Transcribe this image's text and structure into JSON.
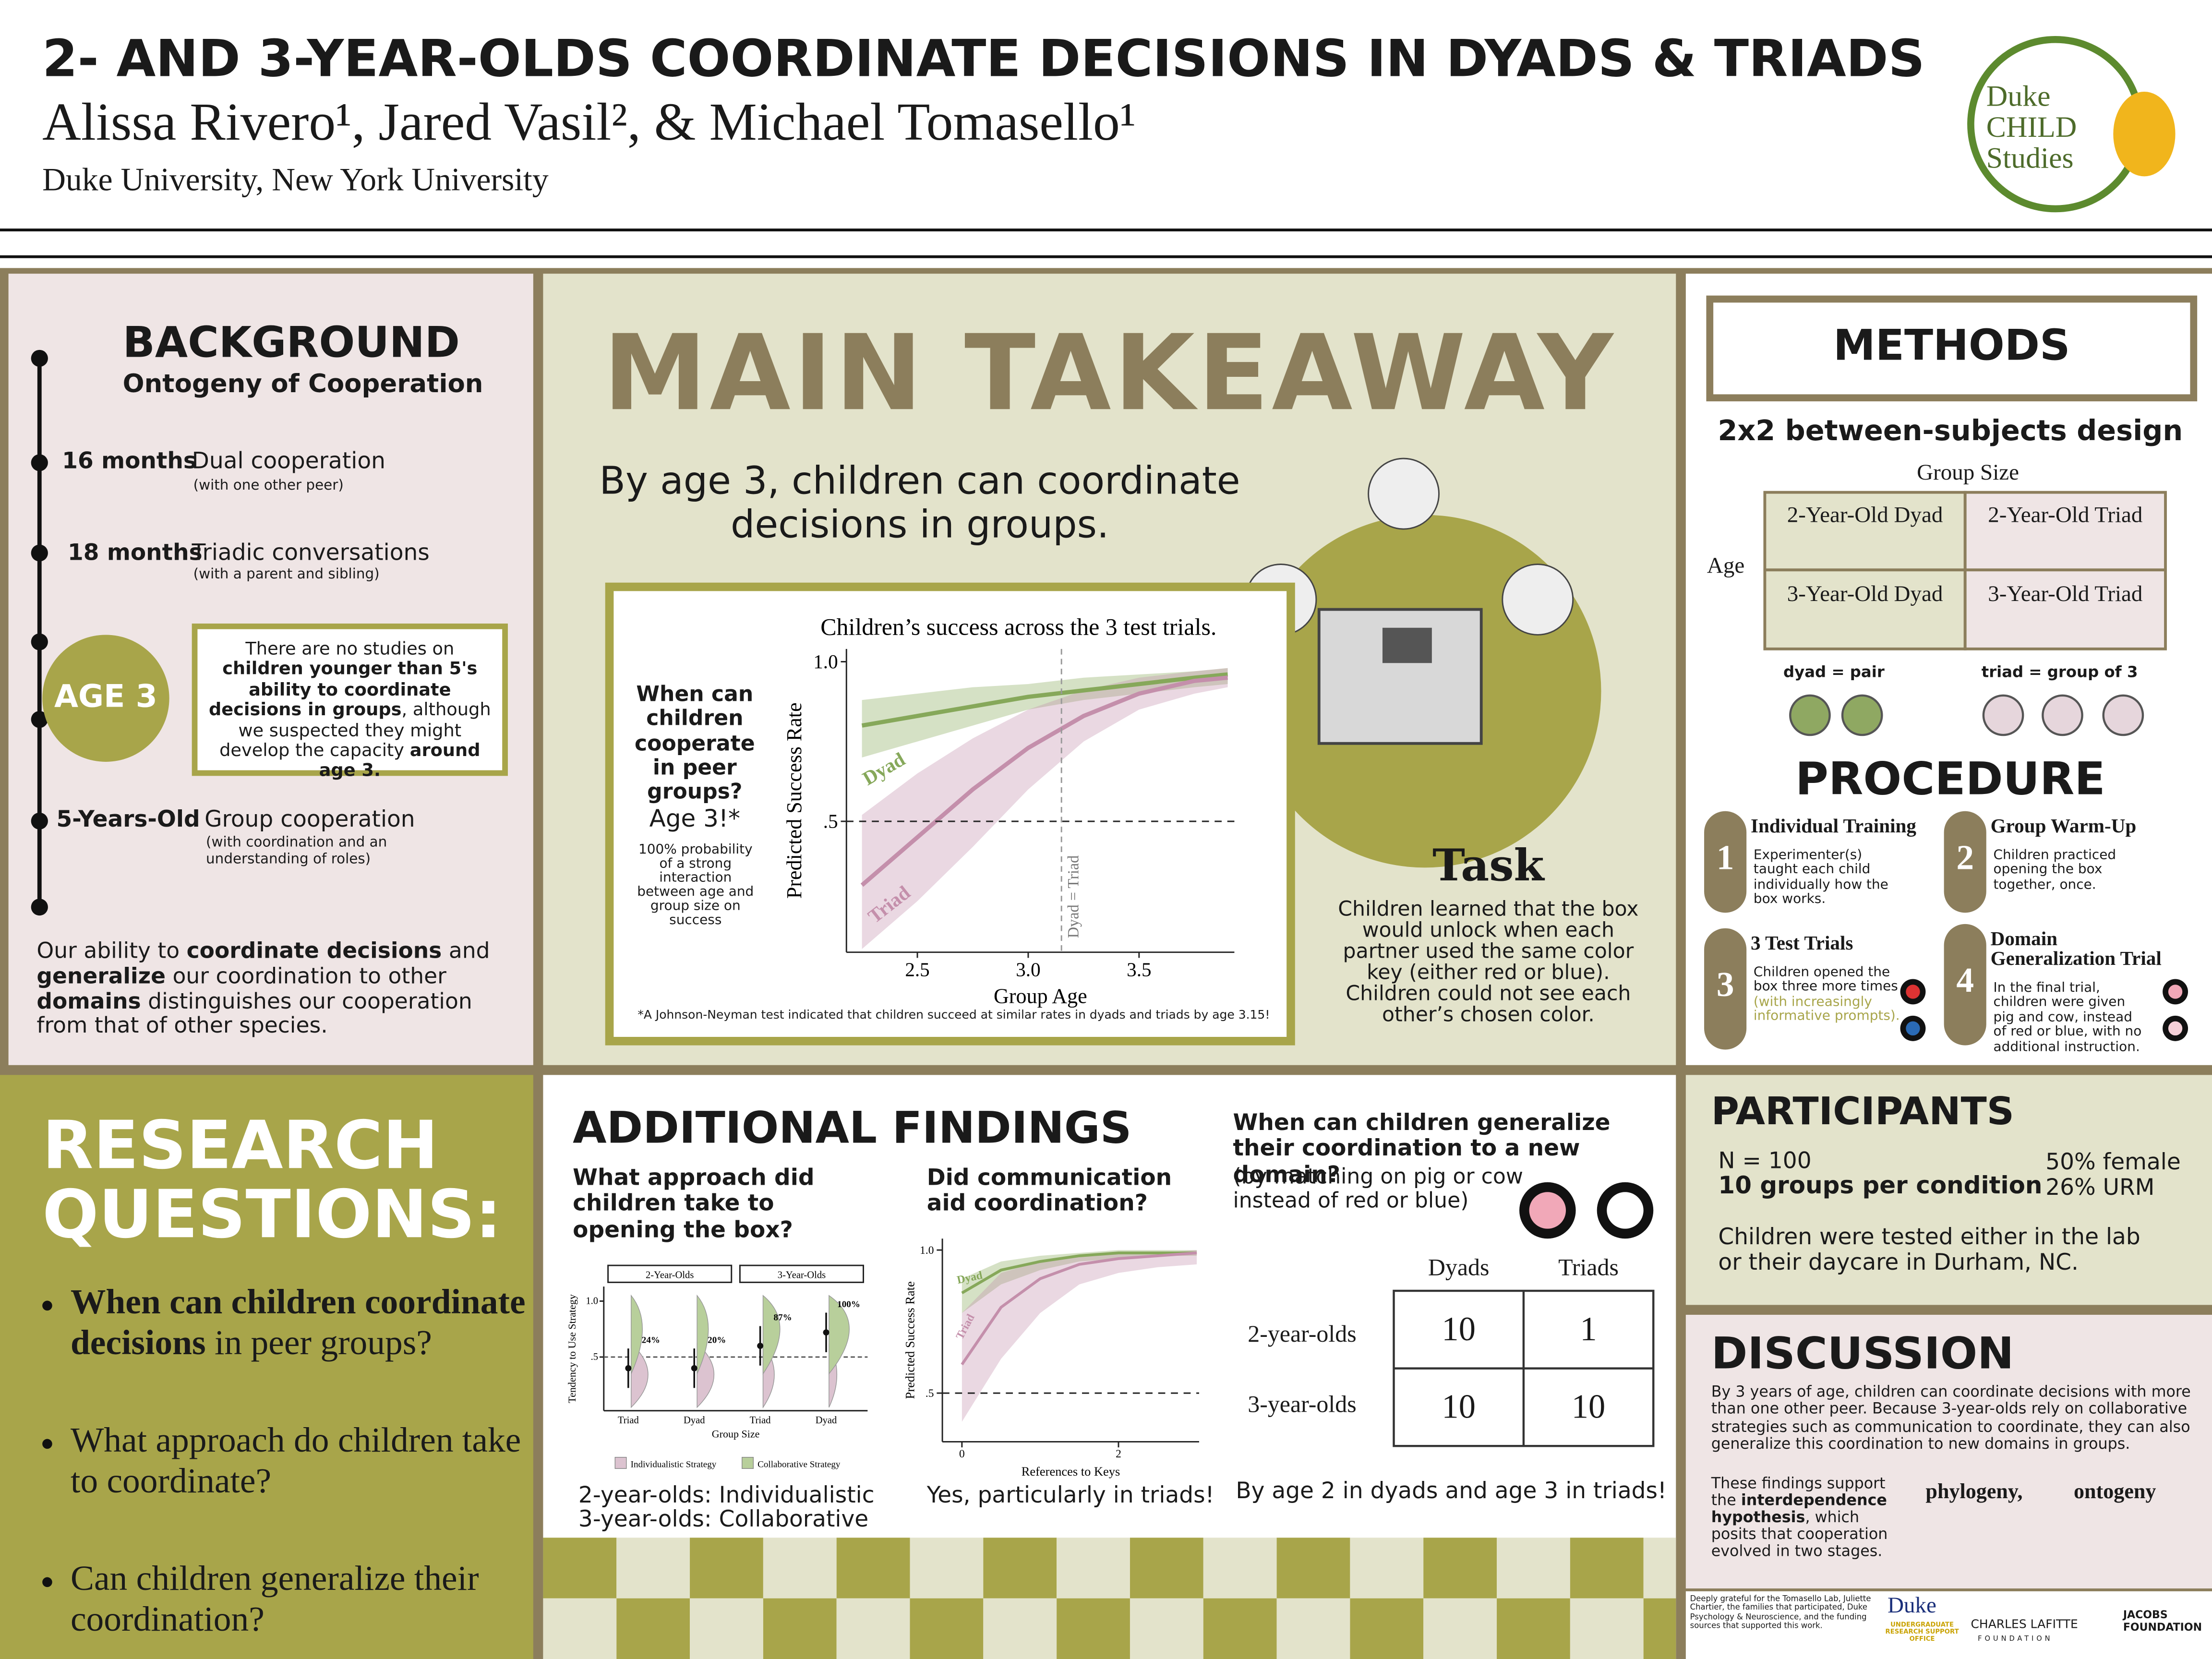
{
  "header": {
    "title": "2- AND 3-YEAR-OLDS COORDINATE DECISIONS IN DYADS & TRIADS",
    "authors": "Alissa Rivero¹, Jared Vasil², & Michael Tomasello¹",
    "affiliation": "Duke University, New York University",
    "logo": [
      "Duke",
      "CHILD",
      "Studies"
    ]
  },
  "background": {
    "title": "BACKGROUND",
    "subtitle": "Ontogeny of Cooperation",
    "timeline": [
      {
        "age": "16 months",
        "label": "Dual cooperation",
        "note": "(with one other peer)"
      },
      {
        "age": "18 months",
        "label": "Triadic conversations",
        "note": "(with a parent and sibling)"
      },
      {
        "age": "5-Years-Old",
        "label": "Group cooperation",
        "note": "(with coordination and an understanding of roles)"
      }
    ],
    "age3": "AGE 3",
    "callout": [
      {
        "text": "There are no studies on "
      },
      {
        "text": "children younger than 5's ability to coordinate decisions in groups",
        "bold": true
      },
      {
        "text": ", although we suspected they might develop the capacity "
      },
      {
        "text": "around age 3.",
        "bold": true
      }
    ],
    "summary": [
      {
        "text": "Our ability to "
      },
      {
        "text": "coordinate decisions",
        "bold": true
      },
      {
        "text": " and "
      },
      {
        "text": "generalize",
        "bold": true
      },
      {
        "text": " our coordination to other "
      },
      {
        "text": "domains",
        "bold": true
      },
      {
        "text": " distinguishes our cooperation from that of other species."
      }
    ]
  },
  "main_takeaway": {
    "title": "MAIN TAKEAWAY",
    "statement": "By age 3, children can coordinate decisions in groups.",
    "question": "When can children cooperate in peer groups?",
    "answer": "Age 3!*",
    "answer_note": "100% probability of a strong interaction between age and group size on success",
    "footnote": "*A Johnson-Neyman test indicated that children succeed at similar rates in dyads and triads by age 3.15!",
    "chart": {
      "type": "line",
      "title": "Children’s success across the 3 test trials.",
      "x_label": "Group Age",
      "y_label": "Predicted Success Rate",
      "x": [
        2.25,
        2.5,
        2.75,
        3.0,
        3.25,
        3.5,
        3.75,
        3.9
      ],
      "series": [
        {
          "name": "Dyad",
          "color": "#86a85a",
          "values": [
            0.8,
            0.83,
            0.86,
            0.89,
            0.91,
            0.93,
            0.95,
            0.96
          ],
          "lower": [
            0.7,
            0.75,
            0.8,
            0.85,
            0.88,
            0.9,
            0.92,
            0.93
          ],
          "upper": [
            0.88,
            0.9,
            0.92,
            0.93,
            0.95,
            0.96,
            0.97,
            0.98
          ]
        },
        {
          "name": "Triad",
          "color": "#c48fab",
          "values": [
            0.3,
            0.45,
            0.6,
            0.73,
            0.83,
            0.9,
            0.94,
            0.95
          ],
          "lower": [
            0.1,
            0.25,
            0.42,
            0.6,
            0.75,
            0.85,
            0.9,
            0.92
          ],
          "upper": [
            0.52,
            0.65,
            0.76,
            0.85,
            0.91,
            0.95,
            0.97,
            0.98
          ]
        }
      ],
      "xlim": [
        2.18,
        3.93
      ],
      "xticks": [
        2.5,
        {
          "value": 3,
          "label": "3.0"
        },
        3.5
      ],
      "ylim": [
        0.09,
        1.04
      ],
      "yticks": [
        {
          "value": 0.5,
          "label": ".5"
        },
        {
          "value": 1,
          "label": "1.0"
        }
      ],
      "reference_y": 0.5,
      "reference_x": 3.15,
      "reference_x_label": "Dyad = Triad"
    },
    "task": {
      "title": "Task",
      "text": "Children learned that the box would unlock when each partner used the same color key (either red or blue). Children could not see each other’s chosen color."
    }
  },
  "methods": {
    "title": "METHODS",
    "design": "2x2 between-subjects design",
    "column_header": "Group Size",
    "row_header": "Age",
    "cells": [
      [
        "2-Year-Old Dyad",
        "2-Year-Old Triad"
      ],
      [
        "3-Year-Old Dyad",
        "3-Year-Old Triad"
      ]
    ],
    "dyad_def": "dyad = pair",
    "triad_def": "triad = group of 3"
  },
  "procedure": {
    "title": "PROCEDURE",
    "steps": [
      {
        "number": "1",
        "title": "Individual Training",
        "text": "Experimenter(s) taught each child individually how the box works."
      },
      {
        "number": "2",
        "title": "Group Warm-Up",
        "text": "Children practiced opening the box together, once."
      },
      {
        "number": "3",
        "title": "3 Test Trials",
        "text": "Children opened the box three more times",
        "note": "(with increasingly informative prompts)."
      },
      {
        "number": "4",
        "title": "Domain Generalization Trial",
        "text": "In the final trial, children were given pig and cow, instead of red or blue, with no additional instruction."
      }
    ]
  },
  "research_questions": {
    "title": "RESEARCH QUESTIONS:",
    "items": [
      [
        {
          "text": "When can children coordinate decisions",
          "bold": true
        },
        {
          "text": " in peer groups?"
        }
      ],
      [
        {
          "text": "What approach do children take to coordinate?"
        }
      ],
      [
        {
          "text": "Can children generalize their coordination?"
        }
      ]
    ]
  },
  "additional_findings": {
    "title": "ADDITIONAL FINDINGS",
    "approach": {
      "question": "What approach did children take to opening the box?",
      "answer": [
        "2-year-olds: Individualistic",
        "3-year-olds: Collaborative"
      ],
      "chart": {
        "type": "raincloud",
        "panels": [
          "2-Year-Olds",
          "3-Year-Olds"
        ],
        "categories": [
          "Triad",
          "Dyad",
          "Triad",
          "Dyad"
        ],
        "values": [
          0.4,
          0.4,
          0.6,
          0.72
        ],
        "probability_labels": [
          "24%",
          "20%",
          "87%",
          "100%"
        ],
        "x_label": "Group Size",
        "y_label": "Tendency to Use Strategy",
        "ylim": [
          0.02,
          1.13
        ],
        "yticks": [
          {
            "value": 0.5,
            "label": ".5"
          },
          {
            "value": 1,
            "label": "1.0"
          }
        ],
        "series": [
          {
            "name": "Individualistic Strategy",
            "color": "#dcc3d0"
          },
          {
            "name": "Collaborative Strategy",
            "color": "#b8cf9b"
          }
        ]
      }
    },
    "communication": {
      "question": "Did communication aid coordination?",
      "answer": "Yes, particularly in triads!",
      "chart": {
        "type": "line",
        "x_label": "References to Keys",
        "y_label": "Predicted Success Rate",
        "x": [
          0,
          0.5,
          1,
          1.5,
          2,
          2.5,
          3
        ],
        "series": [
          {
            "name": "Dyad",
            "color": "#86a85a",
            "values": [
              0.85,
              0.93,
              0.96,
              0.98,
              0.99,
              0.99,
              0.99
            ],
            "lower": [
              0.78,
              0.88,
              0.93,
              0.96,
              0.97,
              0.98,
              0.98
            ],
            "upper": [
              0.9,
              0.96,
              0.98,
              0.99,
              1.0,
              1.0,
              1.0
            ]
          },
          {
            "name": "Triad",
            "color": "#c48fab",
            "values": [
              0.6,
              0.8,
              0.9,
              0.95,
              0.97,
              0.98,
              0.99
            ],
            "lower": [
              0.4,
              0.62,
              0.78,
              0.88,
              0.92,
              0.94,
              0.95
            ],
            "upper": [
              0.78,
              0.92,
              0.96,
              0.98,
              0.99,
              0.99,
              1.0
            ]
          }
        ],
        "xlim": [
          -0.25,
          3.03
        ],
        "xticks": [
          0,
          2
        ],
        "ylim": [
          0.33,
          1.04
        ],
        "yticks": [
          {
            "value": 0.5,
            "label": ".5"
          },
          {
            "value": 1,
            "label": "1.0"
          }
        ],
        "reference_y": 0.5
      }
    },
    "generalization": {
      "question": "When can children generalize their coordination to a new domain?",
      "note": "(by matching on pig or cow instead of red or blue)",
      "table": {
        "columns": [
          "Dyads",
          "Triads"
        ],
        "rows": [
          {
            "label": "2-year-olds",
            "values": [
              10,
              1
            ]
          },
          {
            "label": "3-year-olds",
            "values": [
              10,
              10
            ]
          }
        ]
      },
      "answer": "By age 2 in dyads and age 3 in triads!"
    }
  },
  "participants": {
    "title": "PARTICIPANTS",
    "n": "N = 100",
    "groups": "10 groups per condition",
    "female": "50% female",
    "urm": "26% URM",
    "location": "Children were tested either in the lab or their daycare in Durham, NC."
  },
  "discussion": {
    "title": "DISCUSSION",
    "text": "By 3 years of age, children can coordinate decisions with more than one other peer. Because 3-year-olds rely on collaborative strategies such as communication to coordinate, they can also generalize this coordination to new domains in groups.",
    "hypothesis": [
      {
        "text": "These findings support the "
      },
      {
        "text": "interdependence hypothesis",
        "bold": true
      },
      {
        "text": ", which posits that cooperation evolved in two stages."
      }
    ],
    "phylogeny": "phylogeny,",
    "ontogeny": "ontogeny"
  },
  "acknowledgments": {
    "text": "Deeply grateful for the Tomasello Lab, Juliette Chartier, the families that participated, Duke Psychology & Neuroscience, and the funding sources that supported this work.",
    "logos": [
      "Duke",
      "UNDERGRADUATE RESEARCH SUPPORT OFFICE",
      "CHARLES LAFITTE",
      "FOUNDATION",
      "JACOBS FOUNDATION"
    ]
  }
}
